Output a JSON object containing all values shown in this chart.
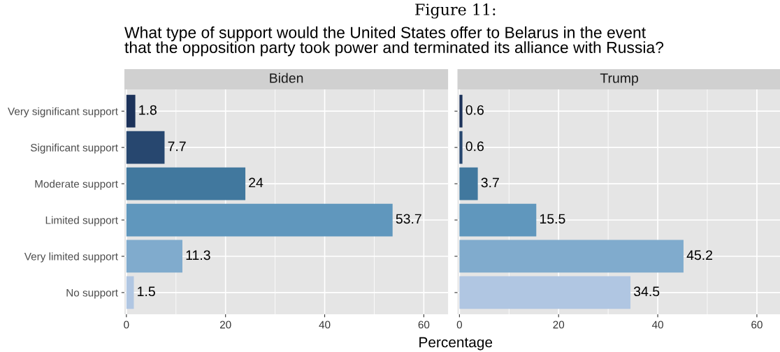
{
  "chart_data": [
    {
      "type": "bar",
      "orientation": "horizontal",
      "title": "Biden",
      "annotations": [
        "Figure 11:",
        "What type of support would the United States offer to Belarus in the event\nthat the opposition party took power and terminated its alliance with Russia?"
      ],
      "xlabel": "Percentage",
      "categories": [
        "Very significant support",
        "Significant support",
        "Moderate support",
        "Limited support",
        "Very limited support",
        "No support"
      ],
      "values": [
        1.8,
        7.7,
        24,
        53.7,
        11.3,
        1.5
      ],
      "colors": [
        "#1c325a",
        "#27476f",
        "#41789e",
        "#6097bd",
        "#80abcd",
        "#b0c6e2"
      ],
      "xlim": [
        -0.4,
        64.9
      ],
      "xticks": [
        0,
        20,
        40,
        60
      ],
      "grid": true,
      "data_labels": true
    },
    {
      "type": "bar",
      "orientation": "horizontal",
      "title": "Trump",
      "categories": [
        null,
        null,
        null,
        null,
        null,
        null
      ],
      "values": [
        0.6,
        0.6,
        3.7,
        15.5,
        45.2,
        34.5
      ],
      "colors": [
        "#1c325a",
        "#27476f",
        "#41789e",
        "#6097bd",
        "#80abcd",
        "#b0c6e2"
      ],
      "xlim": [
        -0.4,
        64.9
      ],
      "xticks": [
        0,
        20,
        40,
        60
      ],
      "grid": true,
      "data_labels": true
    }
  ]
}
